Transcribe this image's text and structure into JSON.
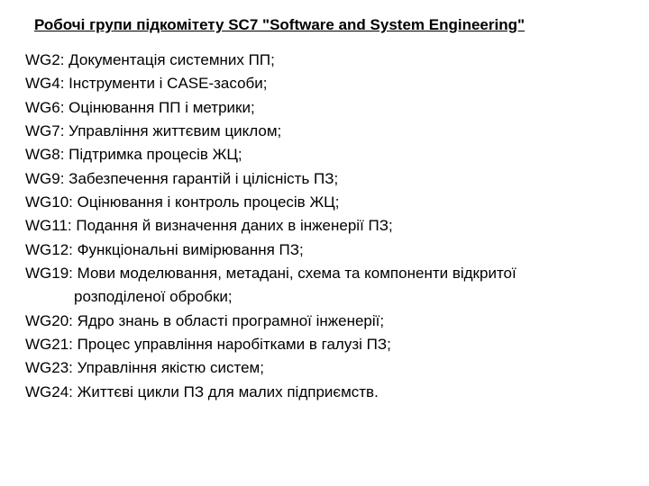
{
  "title": "Робочі групи  підкомітету  SC7 \"Software and System Engineering\"",
  "items": [
    {
      "text": "WG2: Документація системних ПП;"
    },
    {
      "text": "WG4: Інструменти і CASE-засоби;"
    },
    {
      "text": "WG6: Оцінювання ПП і метрики;"
    },
    {
      "text": "WG7: Управління життєвим циклом;"
    },
    {
      "text": "WG8: Підтримка процесів ЖЦ;"
    },
    {
      "text": "WG9: Забезпечення гарантій і цілісність ПЗ;"
    },
    {
      "text": "WG10: Оцінювання і контроль процесів ЖЦ;"
    },
    {
      "text": "WG11: Подання й визначення даних в інженерії ПЗ;"
    },
    {
      "text": "WG12: Функціональні вимірювання ПЗ;"
    },
    {
      "text": "WG19: Мови моделювання, метадані, схема та компоненти відкритої"
    },
    {
      "text": "розподіленої обробки;",
      "indent": true
    },
    {
      "text": "WG20: Ядро знань в області програмної інженерії;"
    },
    {
      "text": "WG21: Процес управління наробітками в галузі ПЗ;"
    },
    {
      "text": "WG23: Управління якістю систем;"
    },
    {
      "text": "WG24: Життєві цикли ПЗ для малих підприємств."
    }
  ],
  "colors": {
    "background": "#ffffff",
    "text": "#000000"
  },
  "typography": {
    "font_family": "Arial",
    "title_fontsize": 17,
    "body_fontsize": 17,
    "title_weight": "bold",
    "title_underline": true,
    "line_height": 1.55
  }
}
